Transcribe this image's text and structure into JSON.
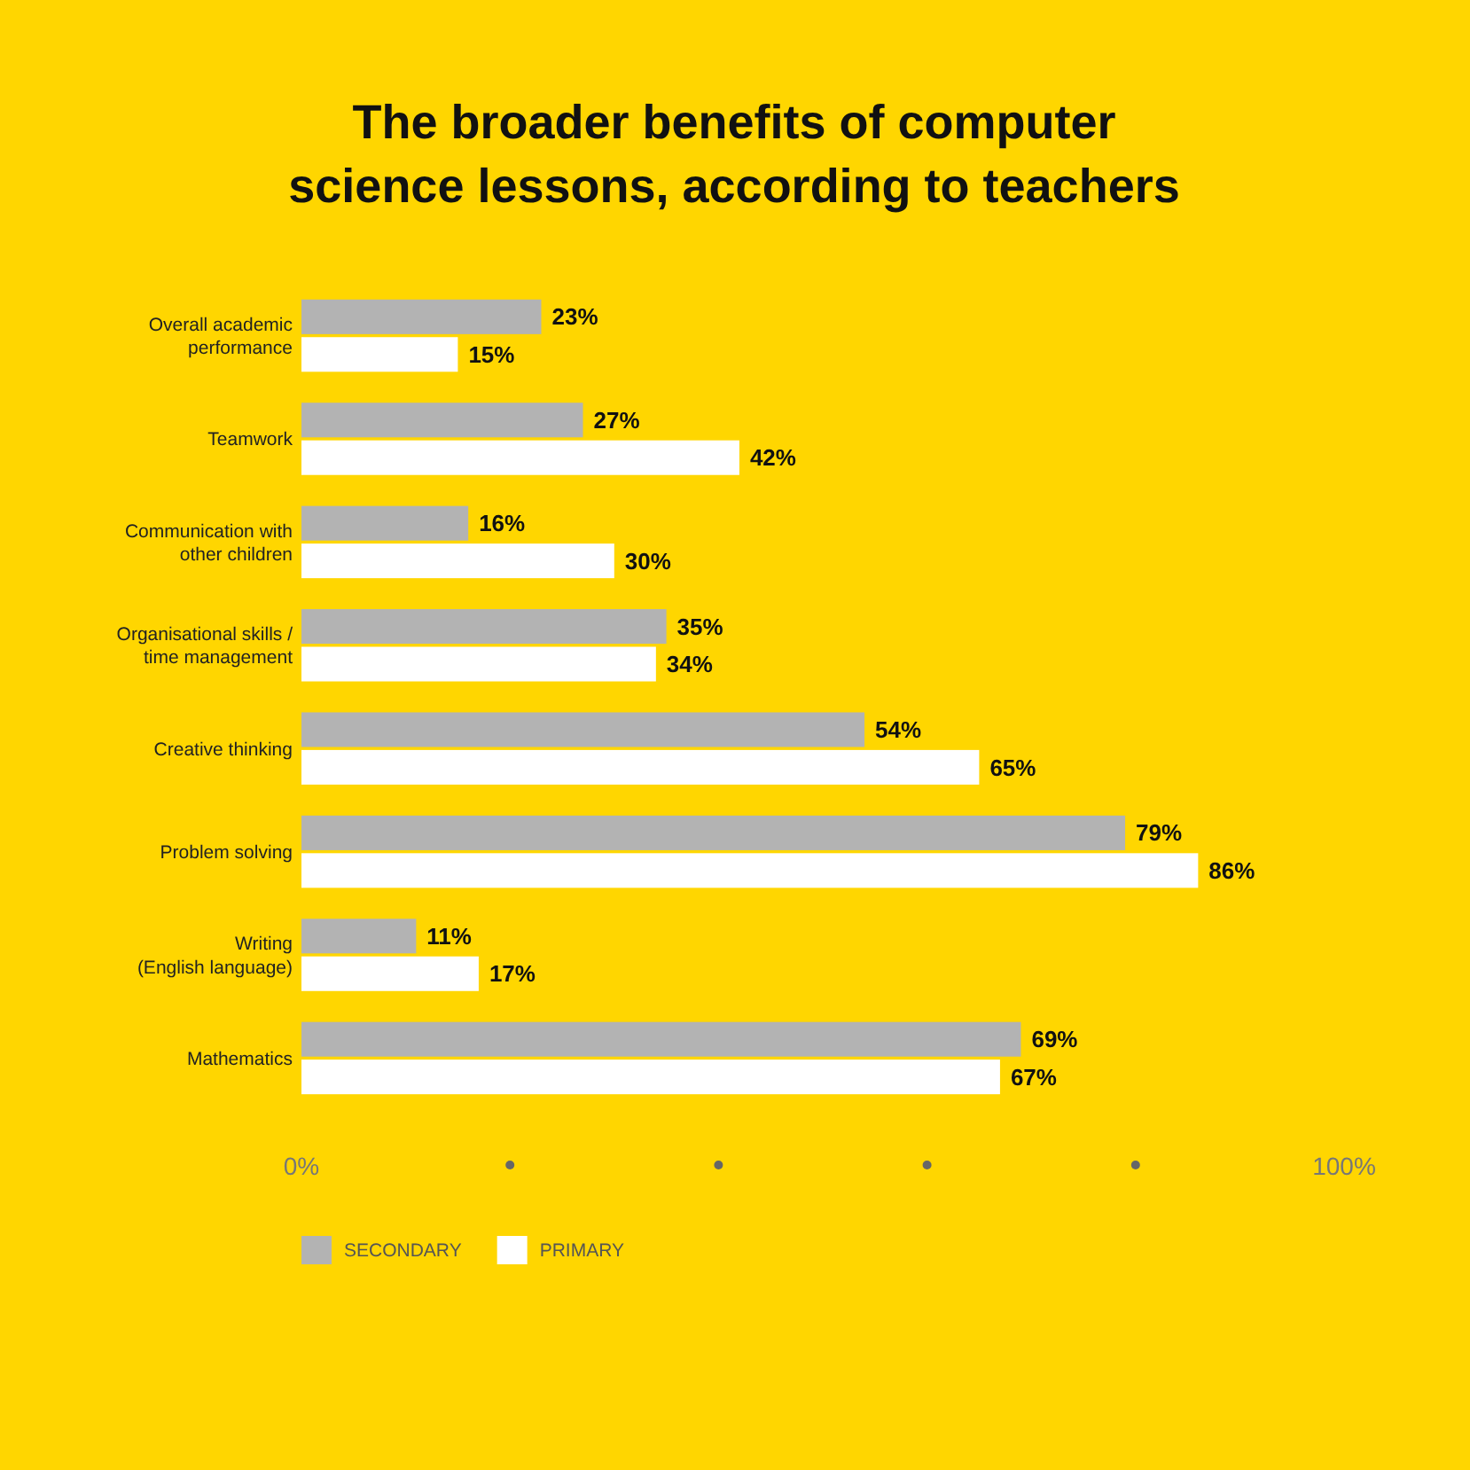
{
  "chart_data": {
    "type": "bar",
    "orientation": "horizontal",
    "title": "The broader benefits of computer science lessons, according to teachers",
    "categories": [
      "Overall academic\nperformance",
      "Teamwork",
      "Communication with\nother children",
      "Organisational skills /\ntime management",
      "Creative thinking",
      "Problem solving",
      "Writing\n(English language)",
      "Mathematics"
    ],
    "series": [
      {
        "name": "SECONDARY",
        "color": "#b3b3b3",
        "values": [
          23,
          27,
          16,
          35,
          54,
          79,
          11,
          69
        ],
        "value_labels": [
          "23%",
          "27%",
          "16%",
          "35%",
          "54%",
          "79%",
          "11%",
          "69%"
        ]
      },
      {
        "name": "PRIMARY",
        "color": "#ffffff",
        "values": [
          15,
          42,
          30,
          34,
          65,
          86,
          17,
          67
        ],
        "value_labels": [
          "15%",
          "42%",
          "30%",
          "34%",
          "65%",
          "86%",
          "17%",
          "67%"
        ]
      }
    ],
    "xlim": [
      0,
      100
    ],
    "xticks": [
      {
        "value": 0,
        "label": "0%"
      },
      {
        "value": 100,
        "label": "100%"
      }
    ],
    "grid": false,
    "legend": "bottom left"
  }
}
